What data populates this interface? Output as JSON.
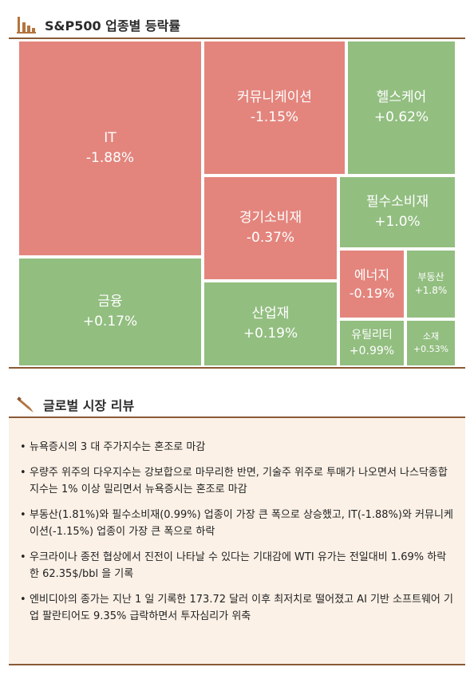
{
  "header": {
    "title": "S&P500 업종별 등락률"
  },
  "chart_data": {
    "type": "treemap",
    "title": "S&P500 업종별 등락률",
    "colors": {
      "positive": "#92be80",
      "negative": "#e3857d"
    },
    "sectors": [
      {
        "name": "IT",
        "change_pct": -1.88,
        "label": "-1.88%"
      },
      {
        "name": "커뮤니케이션",
        "change_pct": -1.15,
        "label": "-1.15%"
      },
      {
        "name": "헬스케어",
        "change_pct": 0.62,
        "label": "+0.62%"
      },
      {
        "name": "경기소비재",
        "change_pct": -0.37,
        "label": "-0.37%"
      },
      {
        "name": "필수소비재",
        "change_pct": 1.0,
        "label": "+1.0%"
      },
      {
        "name": "금융",
        "change_pct": 0.17,
        "label": "+0.17%"
      },
      {
        "name": "산업재",
        "change_pct": 0.19,
        "label": "+0.19%"
      },
      {
        "name": "에너지",
        "change_pct": -0.19,
        "label": "-0.19%"
      },
      {
        "name": "부동산",
        "change_pct": 1.8,
        "label": "+1.8%"
      },
      {
        "name": "유틸리티",
        "change_pct": 0.99,
        "label": "+0.99%"
      },
      {
        "name": "소재",
        "change_pct": 0.53,
        "label": "+0.53%"
      }
    ]
  },
  "review": {
    "title": "글로벌 시장 리뷰",
    "items": [
      "뉴욕증시의 3 대 주가지수는 혼조로 마감",
      "우량주 위주의 다우지수는 강보합으로 마무리한 반면, 기술주 위주로 투매가 나오면서 나스닥종합지수는 1% 이상 밀리면서 뉴욕증시는 혼조로 마감",
      "부동산(1.81%)와 필수소비재(0.99%) 업종이 가장 큰 폭으로 상승했고, IT(-1.88%)와 커뮤니케이션(-1.15%) 업종이 가장 큰 폭으로 하락",
      "우크라이나 종전 협상에서 진전이 나타날 수 있다는 기대감에 WTI 유가는 전일대비 1.69% 하락한 62.35$/bbl 을 기록",
      "엔비디아의 종가는 지난 1 일 기록한 173.72 달러 이후 최저치로 떨어졌고 AI 기반 소프트웨어 기업 팔란티어도 9.35% 급락하면서 투자심리가 위축"
    ]
  }
}
